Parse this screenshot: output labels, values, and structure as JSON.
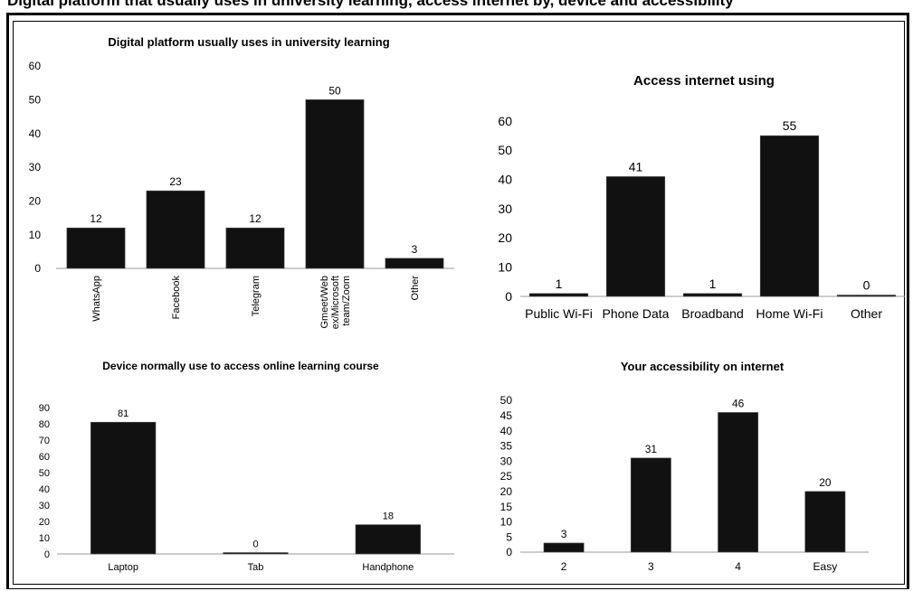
{
  "page_caption": "Digital platform that usually uses in university learning, access internet by, device and accessibility",
  "colors": {
    "bar": "#111111",
    "axis": "#9a9a9a",
    "text": "#000000"
  },
  "chart_data": [
    {
      "type": "bar",
      "title": "Digital platform usually uses in university learning",
      "categories": [
        "WhatsApp",
        "Facebook",
        "Telegram",
        "Gmeet/Web ex/Microsoft team/Zoom",
        "Other"
      ],
      "category_lines": [
        [
          "WhatsApp"
        ],
        [
          "Facebook"
        ],
        [
          "Telegram"
        ],
        [
          "Gmeet/Web",
          "ex/Microsoft",
          "team/Zoom"
        ],
        [
          "Other"
        ]
      ],
      "values": [
        12,
        23,
        12,
        50,
        3
      ],
      "yticks": [
        0,
        10,
        20,
        30,
        40,
        50,
        60
      ],
      "ylim": [
        0,
        60
      ],
      "xlabel": "",
      "ylabel": ""
    },
    {
      "type": "bar",
      "title": "Access internet using",
      "categories": [
        "Public Wi-Fi",
        "Phone Data",
        "Broadband",
        "Home Wi-Fi",
        "Other"
      ],
      "values": [
        1,
        41,
        1,
        55,
        0
      ],
      "yticks": [
        0,
        10,
        20,
        30,
        40,
        50,
        60
      ],
      "ylim": [
        0,
        60
      ],
      "xlabel": "",
      "ylabel": ""
    },
    {
      "type": "bar",
      "title": "Device normally use to access online learning course",
      "categories": [
        "Laptop",
        "Tab",
        "Handphone"
      ],
      "values": [
        81,
        0,
        18
      ],
      "yticks": [
        0,
        10,
        20,
        30,
        40,
        50,
        60,
        70,
        80,
        90
      ],
      "ylim": [
        0,
        90
      ],
      "xlabel": "",
      "ylabel": ""
    },
    {
      "type": "bar",
      "title": "Your  accessibility on internet",
      "categories": [
        "2",
        "3",
        "4",
        "Easy"
      ],
      "values": [
        3,
        31,
        46,
        20
      ],
      "yticks": [
        0,
        5,
        10,
        15,
        20,
        25,
        30,
        35,
        40,
        45,
        50
      ],
      "ylim": [
        0,
        50
      ],
      "xlabel": "",
      "ylabel": ""
    }
  ]
}
